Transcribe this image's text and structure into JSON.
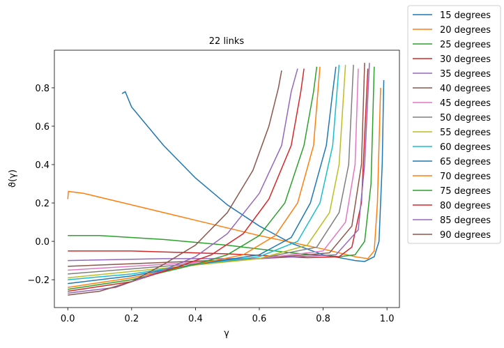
{
  "chart_data": {
    "type": "line",
    "title": "22 links",
    "x_label": "γ",
    "y_label": "ϑ(γ)",
    "xlim": [
      -0.042,
      1.039
    ],
    "ylim": [
      -0.345,
      0.996
    ],
    "xticks": [
      {
        "value": 0,
        "label": "0.0"
      },
      {
        "value": 0.2,
        "label": "0.2"
      },
      {
        "value": 0.4,
        "label": "0.4"
      },
      {
        "value": 0.6,
        "label": "0.6"
      },
      {
        "value": 0.8,
        "label": "0.8"
      },
      {
        "value": 1,
        "label": "1.0"
      }
    ],
    "yticks": [
      {
        "value": -0.2,
        "label": "−0.2"
      },
      {
        "value": 0,
        "label": "0.0"
      },
      {
        "value": 0.2,
        "label": "0.2"
      },
      {
        "value": 0.4,
        "label": "0.4"
      },
      {
        "value": 0.6,
        "label": "0.6"
      },
      {
        "value": 0.8,
        "label": "0.8"
      }
    ],
    "grid": false,
    "legend": "outside-upper-right",
    "series": [
      {
        "name": "15 degrees",
        "color": "#1f77b4",
        "x": [
          0.17,
          0.18,
          0.2,
          0.3,
          0.4,
          0.5,
          0.6,
          0.7,
          0.8,
          0.9,
          0.93,
          0.96,
          0.975,
          0.985,
          0.99
        ],
        "values": [
          0.77,
          0.78,
          0.7,
          0.5,
          0.33,
          0.19,
          0.08,
          -0.01,
          -0.07,
          -0.1,
          -0.105,
          -0.08,
          0.0,
          0.4,
          0.84
        ]
      },
      {
        "name": "20 degrees",
        "color": "#ff7f0e",
        "x": [
          0.0,
          0.002,
          0.05,
          0.2,
          0.4,
          0.6,
          0.8,
          0.9,
          0.94,
          0.96,
          0.97,
          0.98
        ],
        "values": [
          0.22,
          0.26,
          0.25,
          0.19,
          0.11,
          0.03,
          -0.04,
          -0.08,
          -0.09,
          -0.05,
          0.2,
          0.8
        ]
      },
      {
        "name": "25 degrees",
        "color": "#2ca02c",
        "x": [
          0.0,
          0.1,
          0.3,
          0.5,
          0.7,
          0.85,
          0.9,
          0.93,
          0.95,
          0.96
        ],
        "values": [
          0.03,
          0.03,
          0.01,
          -0.02,
          -0.06,
          -0.08,
          -0.07,
          0.0,
          0.3,
          0.91
        ]
      },
      {
        "name": "30 degrees",
        "color": "#d62728",
        "x": [
          0.0,
          0.2,
          0.5,
          0.75,
          0.85,
          0.89,
          0.92,
          0.94
        ],
        "values": [
          -0.05,
          -0.05,
          -0.065,
          -0.085,
          -0.08,
          -0.03,
          0.2,
          0.9
        ]
      },
      {
        "name": "35 degrees",
        "color": "#9467bd",
        "x": [
          0.0,
          0.3,
          0.6,
          0.84,
          0.91,
          0.93,
          0.945
        ],
        "values": [
          -0.1,
          -0.09,
          -0.09,
          -0.07,
          0.06,
          0.4,
          0.93
        ]
      },
      {
        "name": "40 degrees",
        "color": "#8c564b",
        "x": [
          0.0,
          0.3,
          0.6,
          0.82,
          0.89,
          0.92,
          0.93
        ],
        "values": [
          -0.13,
          -0.11,
          -0.09,
          -0.06,
          0.08,
          0.4,
          0.93
        ]
      },
      {
        "name": "45 degrees",
        "color": "#e377c2",
        "x": [
          0.0,
          0.3,
          0.6,
          0.8,
          0.87,
          0.9,
          0.91
        ],
        "values": [
          -0.15,
          -0.12,
          -0.09,
          -0.05,
          0.1,
          0.4,
          0.9
        ]
      },
      {
        "name": "50 degrees",
        "color": "#7f7f7f",
        "x": [
          0.0,
          0.3,
          0.6,
          0.78,
          0.85,
          0.88,
          0.895
        ],
        "values": [
          -0.17,
          -0.13,
          -0.09,
          -0.03,
          0.15,
          0.4,
          0.92
        ]
      },
      {
        "name": "55 degrees",
        "color": "#bcbd22",
        "x": [
          0.0,
          0.3,
          0.6,
          0.75,
          0.82,
          0.85,
          0.87
        ],
        "values": [
          -0.19,
          -0.14,
          -0.09,
          -0.02,
          0.15,
          0.4,
          0.92
        ]
      },
      {
        "name": "60 degrees",
        "color": "#17becf",
        "x": [
          0.0,
          0.2,
          0.4,
          0.6,
          0.72,
          0.79,
          0.83,
          0.85
        ],
        "values": [
          -0.2,
          -0.17,
          -0.12,
          -0.08,
          0.0,
          0.2,
          0.5,
          0.92
        ]
      },
      {
        "name": "65 degrees",
        "color": "#1f77b4",
        "x": [
          0.0,
          0.2,
          0.4,
          0.6,
          0.7,
          0.76,
          0.81,
          0.83,
          0.84
        ],
        "values": [
          -0.22,
          -0.18,
          -0.12,
          -0.07,
          0.02,
          0.2,
          0.5,
          0.78,
          0.91
        ]
      },
      {
        "name": "70 degrees",
        "color": "#ff7f0e",
        "x": [
          0.0,
          0.2,
          0.4,
          0.55,
          0.65,
          0.72,
          0.77,
          0.79
        ],
        "values": [
          -0.24,
          -0.19,
          -0.12,
          -0.07,
          0.03,
          0.2,
          0.5,
          0.91
        ]
      },
      {
        "name": "75 degrees",
        "color": "#2ca02c",
        "x": [
          0.0,
          0.2,
          0.4,
          0.5,
          0.6,
          0.68,
          0.74,
          0.77,
          0.78
        ],
        "values": [
          -0.25,
          -0.2,
          -0.12,
          -0.07,
          0.03,
          0.2,
          0.5,
          0.78,
          0.91
        ]
      },
      {
        "name": "80 degrees",
        "color": "#d62728",
        "x": [
          0.0,
          0.2,
          0.35,
          0.45,
          0.55,
          0.63,
          0.7,
          0.73,
          0.74
        ],
        "values": [
          -0.26,
          -0.21,
          -0.13,
          -0.07,
          0.04,
          0.22,
          0.5,
          0.78,
          0.9
        ]
      },
      {
        "name": "85 degrees",
        "color": "#9467bd",
        "x": [
          0.0,
          0.15,
          0.3,
          0.4,
          0.5,
          0.6,
          0.67,
          0.7,
          0.72
        ],
        "values": [
          -0.27,
          -0.24,
          -0.15,
          -0.08,
          0.04,
          0.25,
          0.5,
          0.78,
          0.9
        ]
      },
      {
        "name": "90 degrees",
        "color": "#8c564b",
        "x": [
          0.0,
          0.1,
          0.2,
          0.3,
          0.4,
          0.5,
          0.58,
          0.63,
          0.66,
          0.67
        ],
        "values": [
          -0.28,
          -0.26,
          -0.21,
          -0.12,
          -0.02,
          0.15,
          0.37,
          0.6,
          0.8,
          0.89
        ]
      }
    ]
  }
}
